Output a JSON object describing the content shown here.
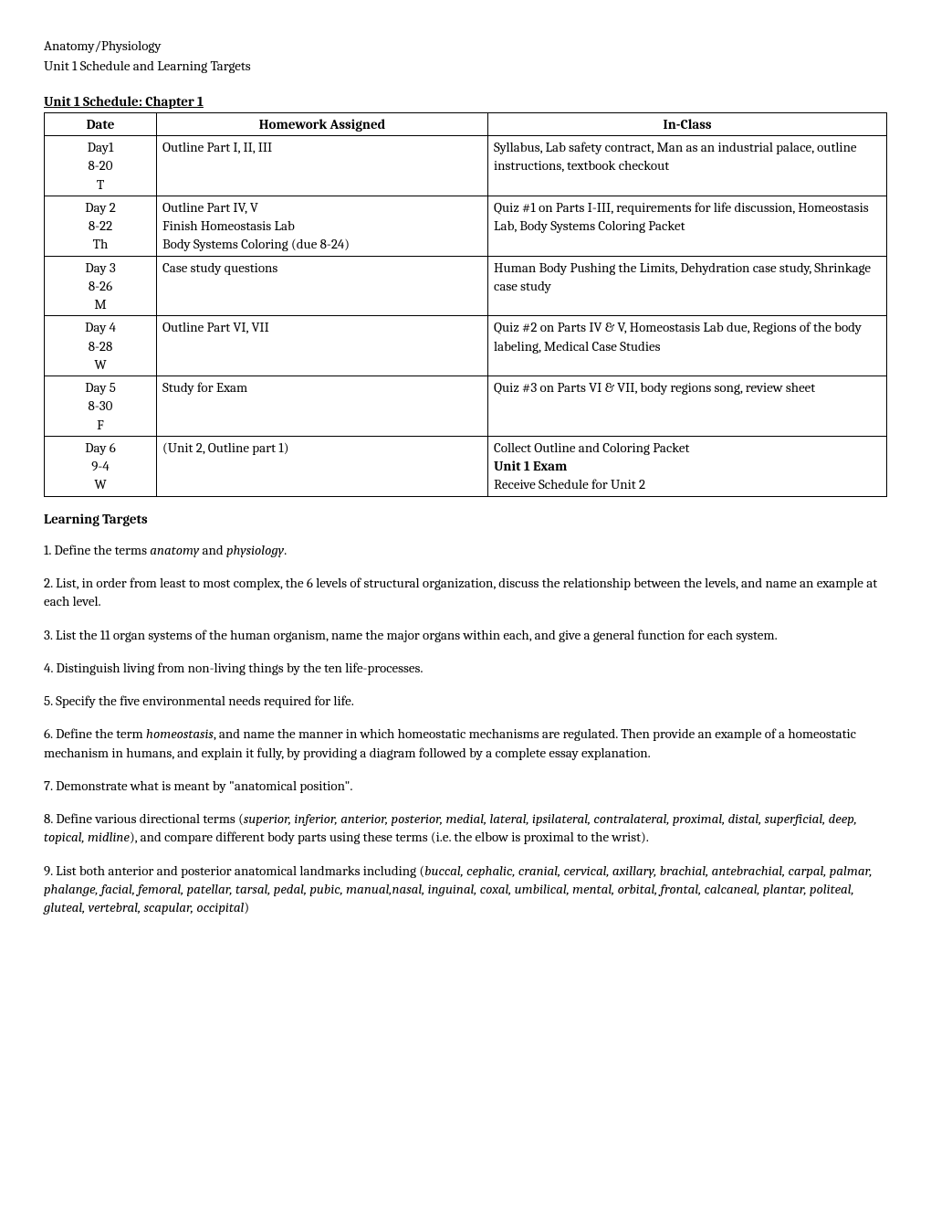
{
  "header": {
    "line1": "Anatomy/Physiology",
    "line2": "Unit 1 Schedule and Learning Targets"
  },
  "scheduleTitle": "Unit 1 Schedule: Chapter 1",
  "table": {
    "headers": {
      "date": "Date",
      "hw": "Homework Assigned",
      "inclass": "In-Class"
    },
    "rows": [
      {
        "date": [
          "Day1",
          "8-20",
          "T"
        ],
        "hw": [
          "Outline Part I, II, III"
        ],
        "class": [
          "Syllabus, Lab safety contract, Man as an industrial palace, outline instructions, textbook checkout"
        ]
      },
      {
        "date": [
          "Day 2",
          "8-22",
          "Th"
        ],
        "hw": [
          "Outline Part IV, V",
          "Finish Homeostasis Lab",
          "Body Systems Coloring (due 8-24)"
        ],
        "class": [
          "Quiz #1 on Parts I-III, requirements for life discussion, Homeostasis Lab, Body Systems Coloring Packet"
        ]
      },
      {
        "date": [
          "Day 3",
          "8-26",
          "M"
        ],
        "hw": [
          "Case study questions"
        ],
        "class": [
          "Human Body Pushing the Limits, Dehydration case study, Shrinkage case study"
        ]
      },
      {
        "date": [
          "Day 4",
          "8-28",
          "W"
        ],
        "hw": [
          "Outline Part VI, VII"
        ],
        "class": [
          "Quiz #2 on Parts IV & V, Homeostasis Lab due, Regions of the body labeling, Medical Case Studies"
        ]
      },
      {
        "date": [
          "Day 5",
          "8-30",
          "F"
        ],
        "hw": [
          "Study for Exam"
        ],
        "class": [
          "Quiz #3 on Parts VI & VII, body regions song, review sheet"
        ]
      },
      {
        "date": [
          "Day 6",
          "9-4",
          "W"
        ],
        "hw": [
          "(Unit 2, Outline part 1)"
        ],
        "class": [
          "Collect Outline and Coloring Packet",
          "Unit 1 Exam",
          "Receive Schedule for Unit 2"
        ],
        "classBoldIndex": 1
      }
    ]
  },
  "targets": {
    "heading": "Learning Targets",
    "items": [
      {
        "n": "1.",
        "pre": " Define the terms ",
        "it1": "anatomy",
        "mid": " and ",
        "it2": "physiology",
        "post": "."
      },
      {
        "n": "2.",
        "text": " List, in order from least to most complex, the 6 levels of structural organization, discuss the relationship between the levels, and name an example at each level."
      },
      {
        "n": "3.",
        "text": " List the 11 organ systems of the human organism, name the major organs within each, and give a general function for each system."
      },
      {
        "n": "4.",
        "text": " Distinguish living from non-living things by the ten life-processes."
      },
      {
        "n": "5.",
        "text": " Specify the five environmental needs required for life."
      },
      {
        "n": "6.",
        "pre": " Define the term ",
        "it1": "homeostasis",
        "post": ", and name the manner in which homeostatic mechanisms are regulated.  Then provide an example of a homeostatic mechanism in humans, and explain it fully, by providing a diagram followed by a complete essay explanation."
      },
      {
        "n": "7.",
        "text": " Demonstrate what is meant by \"anatomical position\"."
      },
      {
        "n": "8.",
        "pre": " Define various directional terms (",
        "it1": "superior, inferior, anterior, posterior, medial, lateral, ipsilateral, contralateral, proximal, distal, superficial, deep, topical, midline",
        "post": "), and compare different body parts using these terms (i.e. the elbow is proximal to the wrist)."
      },
      {
        "n": "9.",
        "pre": " List both anterior and posterior anatomical landmarks including (",
        "it1": "buccal, cephalic, cranial, cervical, axillary, brachial, antebrachial, carpal, palmar, phalange, facial, femoral, patellar, tarsal, pedal, pubic, manual,nasal, inguinal, coxal, umbilical, mental, orbital, frontal, calcaneal, plantar, politeal, gluteal, vertebral, scapular, occipital",
        "post": ")"
      }
    ]
  }
}
